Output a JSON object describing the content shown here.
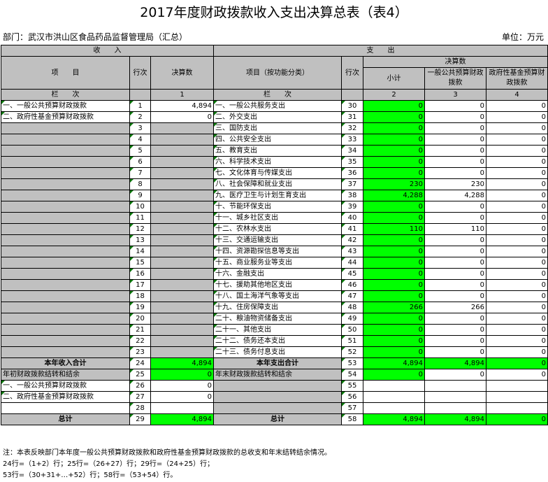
{
  "title": "2017年度财政拨款收入支出决算总表（表4）",
  "department": "部门：武汉市洪山区食品药品监督管理局（汇总）",
  "unit": "单位：万元",
  "header": {
    "income": "收　　入",
    "expense": "支　　出",
    "item": "项　　目",
    "row_no": "行次",
    "final": "决算数",
    "item_func": "项目（按功能分类）",
    "subtotal": "小计",
    "general_budget": "一般公共预算财政拨款",
    "fund_budget": "政府性基金预算财政拨款",
    "col_label": "栏　　次",
    "col1": "1",
    "col2": "2",
    "col3": "3",
    "col4": "4"
  },
  "rows": [
    {
      "l_item": "一、一般公共预算财政拨款",
      "l_no": "1",
      "l_val": "4,894",
      "r_item": "一、一般公共服务支出",
      "r_no": "30",
      "sub": "0",
      "gen": "0",
      "fund": "0"
    },
    {
      "l_item": "二、政府性基金预算财政拨款",
      "l_no": "2",
      "l_val": "0",
      "r_item": "二、外交支出",
      "r_no": "31",
      "sub": "0",
      "gen": "0",
      "fund": "0"
    },
    {
      "l_item": "",
      "l_no": "3",
      "l_val": "",
      "r_item": "三、国防支出",
      "r_no": "32",
      "sub": "0",
      "gen": "0",
      "fund": "0"
    },
    {
      "l_item": "",
      "l_no": "4",
      "l_val": "",
      "r_item": "四、公共安全支出",
      "r_no": "33",
      "sub": "0",
      "gen": "0",
      "fund": "0"
    },
    {
      "l_item": "",
      "l_no": "5",
      "l_val": "",
      "r_item": "五、教育支出",
      "r_no": "34",
      "sub": "0",
      "gen": "0",
      "fund": "0"
    },
    {
      "l_item": "",
      "l_no": "6",
      "l_val": "",
      "r_item": "六、科学技术支出",
      "r_no": "35",
      "sub": "0",
      "gen": "0",
      "fund": "0"
    },
    {
      "l_item": "",
      "l_no": "7",
      "l_val": "",
      "r_item": "七、文化体育与传媒支出",
      "r_no": "36",
      "sub": "0",
      "gen": "0",
      "fund": "0"
    },
    {
      "l_item": "",
      "l_no": "8",
      "l_val": "",
      "r_item": "八、社会保障和就业支出",
      "r_no": "37",
      "sub": "230",
      "gen": "230",
      "fund": "0"
    },
    {
      "l_item": "",
      "l_no": "9",
      "l_val": "",
      "r_item": "九、医疗卫生与计划生育支出",
      "r_no": "38",
      "sub": "4,288",
      "gen": "4,288",
      "fund": "0"
    },
    {
      "l_item": "",
      "l_no": "10",
      "l_val": "",
      "r_item": "十、节能环保支出",
      "r_no": "39",
      "sub": "0",
      "gen": "0",
      "fund": "0"
    },
    {
      "l_item": "",
      "l_no": "11",
      "l_val": "",
      "r_item": "十一、城乡社区支出",
      "r_no": "40",
      "sub": "0",
      "gen": "0",
      "fund": "0"
    },
    {
      "l_item": "",
      "l_no": "12",
      "l_val": "",
      "r_item": "十二、农林水支出",
      "r_no": "41",
      "sub": "110",
      "gen": "110",
      "fund": "0"
    },
    {
      "l_item": "",
      "l_no": "13",
      "l_val": "",
      "r_item": "十三、交通运输支出",
      "r_no": "42",
      "sub": "0",
      "gen": "0",
      "fund": "0"
    },
    {
      "l_item": "",
      "l_no": "14",
      "l_val": "",
      "r_item": "十四、资源勘探信息等支出",
      "r_no": "43",
      "sub": "0",
      "gen": "0",
      "fund": "0"
    },
    {
      "l_item": "",
      "l_no": "15",
      "l_val": "",
      "r_item": "十五、商业服务业等支出",
      "r_no": "44",
      "sub": "0",
      "gen": "0",
      "fund": "0"
    },
    {
      "l_item": "",
      "l_no": "16",
      "l_val": "",
      "r_item": "十六、金融支出",
      "r_no": "45",
      "sub": "0",
      "gen": "0",
      "fund": "0"
    },
    {
      "l_item": "",
      "l_no": "17",
      "l_val": "",
      "r_item": "十七、援助其他地区支出",
      "r_no": "46",
      "sub": "0",
      "gen": "0",
      "fund": "0"
    },
    {
      "l_item": "",
      "l_no": "18",
      "l_val": "",
      "r_item": "十八、国土海洋气象等支出",
      "r_no": "47",
      "sub": "0",
      "gen": "0",
      "fund": "0"
    },
    {
      "l_item": "",
      "l_no": "19",
      "l_val": "",
      "r_item": "十九、住房保障支出",
      "r_no": "48",
      "sub": "266",
      "gen": "266",
      "fund": "0"
    },
    {
      "l_item": "",
      "l_no": "20",
      "l_val": "",
      "r_item": "二十、粮油物资储备支出",
      "r_no": "49",
      "sub": "0",
      "gen": "0",
      "fund": "0"
    },
    {
      "l_item": "",
      "l_no": "21",
      "l_val": "",
      "r_item": "二十一、其他支出",
      "r_no": "50",
      "sub": "0",
      "gen": "0",
      "fund": "0"
    },
    {
      "l_item": "",
      "l_no": "22",
      "l_val": "",
      "r_item": "二十二、债务还本支出",
      "r_no": "51",
      "sub": "0",
      "gen": "0",
      "fund": "0"
    },
    {
      "l_item": "",
      "l_no": "23",
      "l_val": "",
      "r_item": "二十三、债务付息支出",
      "r_no": "52",
      "sub": "0",
      "gen": "0",
      "fund": "0"
    }
  ],
  "total_income_row": {
    "label": "本年收入合计",
    "no": "24",
    "val": "4,894",
    "r_label": "本年支出合计",
    "r_no": "53",
    "sub": "4,894",
    "gen": "4,894",
    "fund": "0"
  },
  "carry_row": {
    "label": "年初财政拨款结转和结余",
    "no": "25",
    "val": "0",
    "r_label": "年末财政拨款结转和结余",
    "r_no": "54",
    "sub": "0",
    "gen": "0",
    "fund": "0"
  },
  "extra_rows": [
    {
      "label": "一、一般公共预算财政拨款",
      "no": "26",
      "val": "0",
      "r_no": "55"
    },
    {
      "label": "二、政府性基金预算财政拨款",
      "no": "27",
      "val": "0",
      "r_no": "56"
    },
    {
      "label": "",
      "no": "28",
      "val": "",
      "r_no": "57"
    }
  ],
  "grand_total_row": {
    "label": "总计",
    "no": "29",
    "val": "4,894",
    "r_label": "总计",
    "r_no": "58",
    "sub": "4,894",
    "gen": "4,894",
    "fund": "0"
  },
  "notes": [
    "注：本表反映部门本年度一般公共预算财政拨款和政府性基金预算财政拨款的总收支和年末结转结余情况。",
    "24行=（1+2）行；25行=（26+27）行；29行=（24+25）行；",
    "53行=（30+31+…+52）行；58行=（53+54）行。"
  ]
}
